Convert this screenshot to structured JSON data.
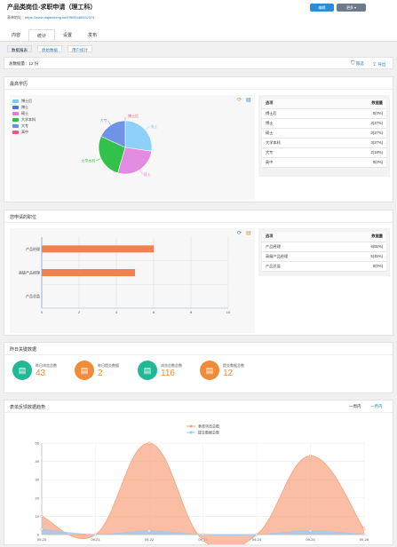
{
  "header": {
    "title": "产品类岗位-求职申请（理工科）",
    "link_label": "表单地址：",
    "link_url": "https://www.dajiesheng.cn/f/9695480932374",
    "edit_button": "编辑",
    "more_button": "更多 ▾"
  },
  "tabs": [
    "内容",
    "统计",
    "设置",
    "发布"
  ],
  "subtabs": [
    "数据报表",
    "原始数据",
    "用户统计"
  ],
  "filter": {
    "count_label": "总数据量：12 份",
    "filter_label": "筛选",
    "export_label": "导出"
  },
  "colors": {
    "blue": "#2d8cd6",
    "orange": "#f2814e",
    "teal": "#23b895",
    "light_orange": "#f9b08e",
    "light_blue": "#9ccbf0"
  },
  "degree": {
    "title": "最高学历",
    "table_headers": [
      "选项",
      "数据量"
    ],
    "rows": [
      {
        "option": "博士后",
        "count": "0(0%)"
      },
      {
        "option": "博士",
        "count": "3(27%)"
      },
      {
        "option": "硕士",
        "count": "3(27%)"
      },
      {
        "option": "大学本科",
        "count": "3(27%)"
      },
      {
        "option": "大专",
        "count": "2(18%)"
      },
      {
        "option": "高中",
        "count": "0(0%)"
      }
    ],
    "legend": [
      "博士后",
      "博士",
      "硕士",
      "大学本科",
      "大专",
      "高中"
    ],
    "legend_colors": [
      "#7ec8f0",
      "#4c74d9",
      "#e07dd6",
      "#2cbf4a",
      "#6a8fd8",
      "#e8577d"
    ],
    "slices": [
      {
        "label": "博士后",
        "value": 0,
        "color": "#e8577d"
      },
      {
        "label": "博士",
        "value": 3,
        "color": "#8fd0f8"
      },
      {
        "label": "硕士",
        "value": 3,
        "color": "#e38be0"
      },
      {
        "label": "大学本科",
        "value": 3,
        "color": "#32c14a"
      },
      {
        "label": "大专",
        "value": 2,
        "color": "#6f93e6"
      },
      {
        "label": "高中",
        "value": 0,
        "color": "#e8577d"
      }
    ]
  },
  "position": {
    "title": "您申请的职位",
    "table_headers": [
      "选项",
      "数据量"
    ],
    "rows": [
      {
        "option": "产品经理",
        "count": "6(55%)"
      },
      {
        "option": "高级产品经理",
        "count": "5(45%)"
      },
      {
        "option": "产品总监",
        "count": "0(0%)"
      }
    ]
  },
  "kpi": {
    "title": "昨日关键数据",
    "cards": [
      {
        "label": "昨日浏览总数",
        "value": "43",
        "color": "#23b895"
      },
      {
        "label": "昨日提交数据",
        "value": "2",
        "color": "#f08b3a"
      },
      {
        "label": "浏览总数总数",
        "value": "116",
        "color": "#23b895"
      },
      {
        "label": "提交数据总数",
        "value": "12",
        "color": "#f08b3a"
      }
    ]
  },
  "trend": {
    "title": "表单反馈数据趋势",
    "range_week": "一周内",
    "range_month": "一月内"
  },
  "chart_data": [
    {
      "type": "pie",
      "title": "",
      "categories": [
        "博士后",
        "博士",
        "硕士",
        "大学本科",
        "大专",
        "高中"
      ],
      "values": [
        0,
        3,
        3,
        3,
        2,
        0
      ]
    },
    {
      "type": "bar",
      "orientation": "horizontal",
      "categories": [
        "产品经理",
        "高级产品经理",
        "产品总监"
      ],
      "values": [
        6,
        5,
        0
      ],
      "xlim": [
        0,
        10
      ],
      "xticks": [
        "0",
        "2",
        "4",
        "6",
        "8",
        "10"
      ],
      "color": "#f2814e"
    },
    {
      "type": "area",
      "x": [
        "09-20",
        "09-21",
        "09-22",
        "09-23",
        "09-24",
        "09-25",
        "09-26"
      ],
      "series": [
        {
          "name": "表单浏览总数",
          "values": [
            10,
            0,
            50,
            -3,
            0,
            43,
            3
          ],
          "color": "#f7a27e"
        },
        {
          "name": "提交数据总数",
          "values": [
            3,
            0,
            2,
            0,
            0,
            2,
            0
          ],
          "color": "#9ccbf0"
        }
      ],
      "ylim": [
        0,
        50
      ],
      "yticks": [
        "0",
        "10",
        "20",
        "30",
        "40",
        "50"
      ],
      "legend_position": "top-center"
    }
  ]
}
